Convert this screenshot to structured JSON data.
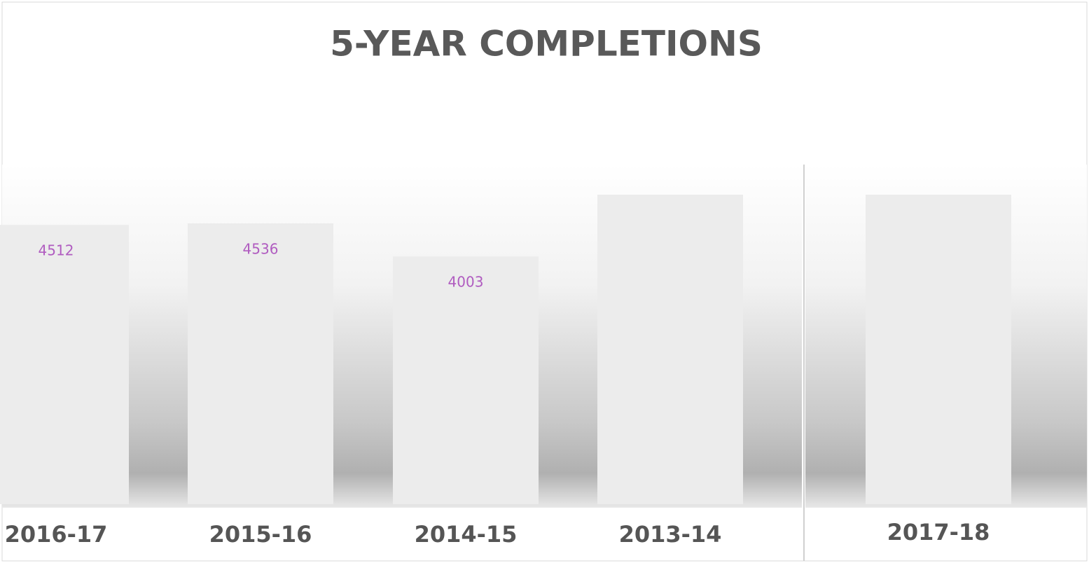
{
  "chart_data": {
    "type": "bar",
    "title": "5-YEAR COMPLETIONS",
    "categories": [
      "2016-17",
      "2015-16",
      "2014-15",
      "2013-14",
      "2017-18"
    ],
    "values": [
      4512,
      4536,
      4003,
      5000,
      5000
    ],
    "value_labels": [
      "4512",
      "4536",
      "4003",
      null,
      null
    ],
    "color": "#ececec",
    "label_color": "#b05cc0"
  }
}
